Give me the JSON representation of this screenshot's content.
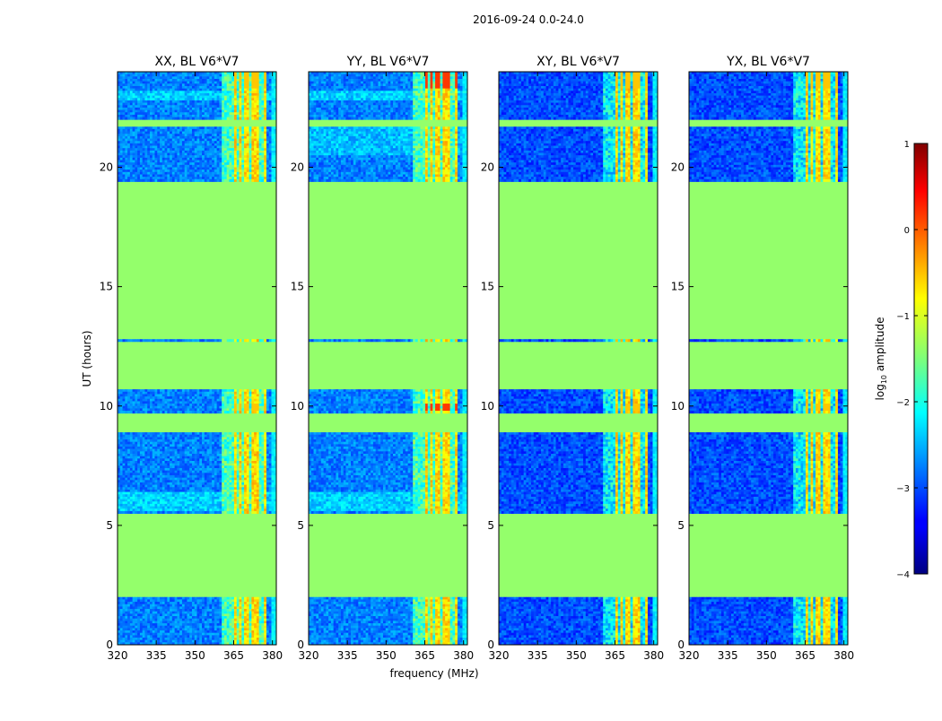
{
  "chart_data": {
    "type": "heatmap",
    "title": "2016-09-24 0.0-24.0",
    "xlabel": "frequency (MHz)",
    "ylabel": "UT (hours)",
    "xlim": [
      320,
      381.5
    ],
    "ylim": [
      0,
      24
    ],
    "xticks": [
      320,
      335,
      350,
      365,
      380
    ],
    "yticks": [
      0,
      5,
      10,
      15,
      20
    ],
    "panels": [
      {
        "title": "XX, BL V6*V7",
        "pol": "XX"
      },
      {
        "title": "YY, BL V6*V7",
        "pol": "YY"
      },
      {
        "title": "XY, BL V6*V7",
        "pol": "XY"
      },
      {
        "title": "YX, BL V6*V7",
        "pol": "YX"
      }
    ],
    "colorbar": {
      "label_pre": "log",
      "label_sub": "10",
      "label_post": " amplitude",
      "range": [
        -4,
        1
      ],
      "ticks": [
        1,
        0,
        -1,
        -2,
        -3,
        -4
      ],
      "tick_labels": [
        "1",
        "0",
        "−1",
        "−2",
        "−3",
        "−4"
      ]
    },
    "flagged_value": -1.4,
    "data_spans_ut": [
      [
        0,
        2.0
      ],
      [
        5.5,
        8.9
      ],
      [
        9.7,
        10.7
      ],
      [
        12.7,
        12.85
      ],
      [
        19.4,
        21.7
      ],
      [
        22.0,
        24.0
      ]
    ],
    "rfi_band_mhz": [
      360.5,
      378
    ],
    "rfi_channels_mhz": [
      365.5,
      367.5,
      370,
      373,
      374.5,
      377
    ]
  }
}
